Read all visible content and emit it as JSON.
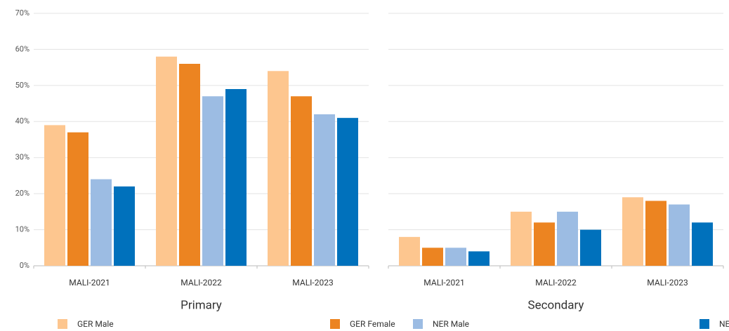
{
  "chart_data": [
    {
      "type": "bar",
      "xlabel": "Primary",
      "categories": [
        "MALI-2021",
        "MALI-2022",
        "MALI-2023"
      ],
      "series": [
        {
          "name": "GER Male",
          "color": "#fdc68f",
          "values": [
            39,
            58,
            54
          ]
        },
        {
          "name": "GER Female",
          "color": "#ec8421",
          "values": [
            37,
            56,
            47
          ]
        },
        {
          "name": "NER Male",
          "color": "#9cbce3",
          "values": [
            24,
            47,
            42
          ]
        },
        {
          "name": "NER Female",
          "color": "#0071bc",
          "values": [
            22,
            49,
            41
          ]
        }
      ],
      "ylim": [
        0,
        70
      ],
      "yticks": [
        {
          "value": 0,
          "label": "0%"
        },
        {
          "value": 10,
          "label": "10%"
        },
        {
          "value": 20,
          "label": "20%"
        },
        {
          "value": 30,
          "label": "30%"
        },
        {
          "value": 40,
          "label": "40%"
        },
        {
          "value": 50,
          "label": "50%"
        },
        {
          "value": 60,
          "label": "60%"
        },
        {
          "value": 70,
          "label": "70%"
        }
      ],
      "grid": true
    },
    {
      "type": "bar",
      "xlabel": "Secondary",
      "categories": [
        "MALI-2021",
        "MALI-2022",
        "MALI-2023"
      ],
      "series": [
        {
          "color": "#fdc68f",
          "values": [
            8,
            15,
            19
          ]
        },
        {
          "color": "#ec8421",
          "values": [
            5,
            12,
            18
          ]
        },
        {
          "color": "#9cbce3",
          "values": [
            5,
            15,
            17
          ]
        },
        {
          "color": "#0071bc",
          "values": [
            4,
            10,
            12
          ]
        }
      ],
      "ylim": [
        0,
        70
      ],
      "yticks": [
        0,
        10,
        20,
        30,
        40,
        50,
        60,
        70
      ],
      "grid": true
    }
  ]
}
